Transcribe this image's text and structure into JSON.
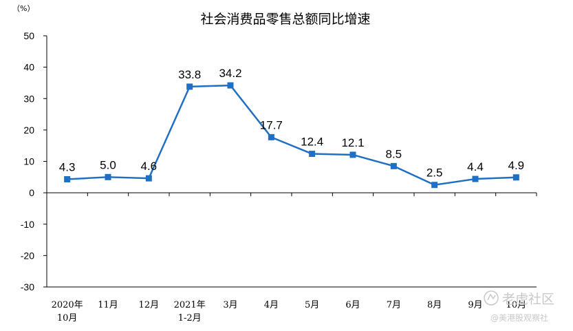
{
  "chart_data": {
    "type": "line",
    "title": "社会消费品零售总额同比增速",
    "unit_label": "（%）",
    "categories": [
      [
        "2020年",
        "10月"
      ],
      [
        "11月"
      ],
      [
        "12月"
      ],
      [
        "2021年",
        "1-2月"
      ],
      [
        "3月"
      ],
      [
        "4月"
      ],
      [
        "5月"
      ],
      [
        "6月"
      ],
      [
        "7月"
      ],
      [
        "8月"
      ],
      [
        "9月"
      ],
      [
        "10月"
      ]
    ],
    "values": [
      4.3,
      5.0,
      4.6,
      33.8,
      34.2,
      17.7,
      12.4,
      12.1,
      8.5,
      2.5,
      4.4,
      4.9
    ],
    "data_labels": [
      "4.3",
      "5.0",
      "4.6",
      "33.8",
      "34.2",
      "17.7",
      "12.4",
      "12.1",
      "8.5",
      "2.5",
      "4.4",
      "4.9"
    ],
    "ylim": [
      -30,
      50
    ],
    "yticks": [
      50,
      40,
      30,
      20,
      10,
      0,
      -10,
      -20,
      -30
    ],
    "grid": false,
    "series_color": "#1f6fc5"
  },
  "watermark": {
    "brand": "老虎社区",
    "handle": "@美港股观察社"
  }
}
